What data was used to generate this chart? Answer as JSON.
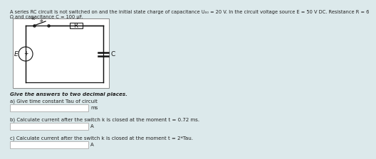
{
  "background_color": "#dce9eb",
  "title_text1": "A series RC circuit is not switched on and the initial state charge of capacitance U₀₀ = 20 V. In the circuit voltage source E = 50 V DC. Resistance R = 6",
  "title_text2": "Ω and capacitance C = 100 µF.",
  "instruction_text": "Give the answers to two decimal places.",
  "q_a_label": "a) Give time constant Tau of circuit",
  "q_a_unit": "ms",
  "q_b_label": "b) Calculate current after the switch k is closed at the moment t = 0.72 ms.",
  "q_b_unit": "A",
  "q_c_label": "c) Calculate current after the switch k is closed at the moment t = 2*Tau.",
  "q_c_unit": "A",
  "box_color": "#ffffff",
  "box_border": "#aaaaaa",
  "text_color": "#222222",
  "circuit_bg": "#ffffff",
  "wire_color": "#111111",
  "title_fontsize": 4.8,
  "label_fontsize": 5.0,
  "unit_fontsize": 5.0,
  "bold_fontsize": 5.2
}
